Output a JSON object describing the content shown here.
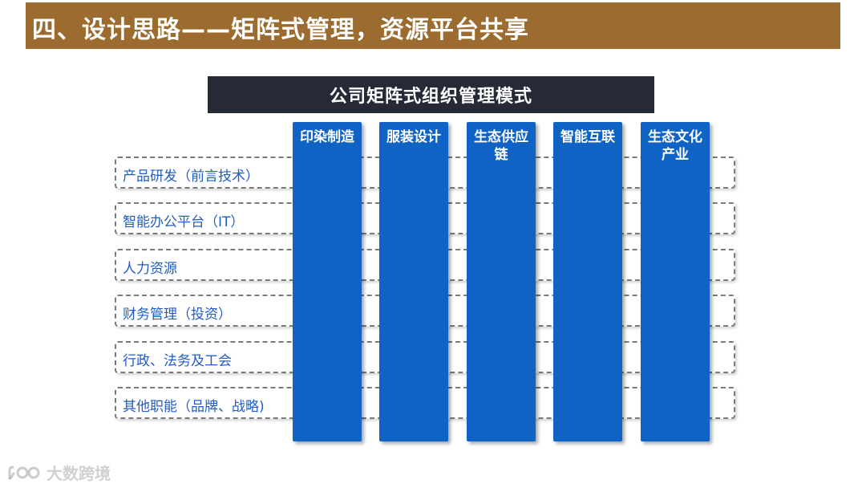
{
  "header": {
    "title": "四、设计思路——矩阵式管理，资源平台共享",
    "bg_color": "#9c6b2f"
  },
  "diagram": {
    "subtitle": "公司矩阵式组织管理模式",
    "rows": [
      {
        "label": "产品研发（前言技术）"
      },
      {
        "label": "智能办公平台（IT）"
      },
      {
        "label": "人力资源"
      },
      {
        "label": "财务管理（投资）"
      },
      {
        "label": "行政、法务及工会"
      },
      {
        "label": "其他职能（品牌、战略)"
      }
    ],
    "columns": [
      {
        "label": "印染制造"
      },
      {
        "label": "服装设计"
      },
      {
        "label": "生态供应链"
      },
      {
        "label": "智能互联"
      },
      {
        "label": "生态文化产业"
      }
    ],
    "column_color": "#0f63c4",
    "row_text_color": "#1f5dc4"
  },
  "watermark": {
    "text": "大数跨境",
    "icon": "brand-logo-icon"
  }
}
